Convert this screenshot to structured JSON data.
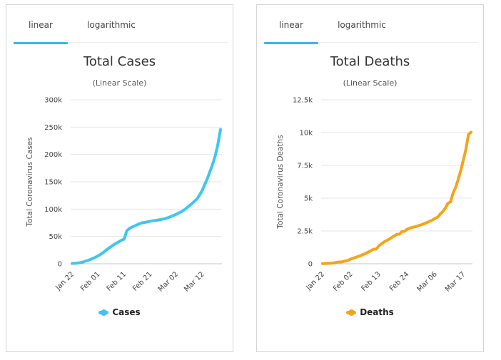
{
  "chart_data": [
    {
      "type": "line",
      "title": "Total Cases",
      "subtitle": "(Linear Scale)",
      "ylabel": "Total Coronavirus Cases",
      "tabs": [
        "linear",
        "logarithmic"
      ],
      "active_tab": 0,
      "ylim": [
        0,
        300000
      ],
      "yticks": [
        0,
        50000,
        100000,
        150000,
        200000,
        250000,
        300000
      ],
      "ytick_labels": [
        "0",
        "50k",
        "100k",
        "150k",
        "200k",
        "250k",
        "300k"
      ],
      "xtick_labels": [
        "Jan 22",
        "Feb 01",
        "Feb 11",
        "Feb 21",
        "Mar 02",
        "Mar 12"
      ],
      "xtick_index": [
        0,
        10,
        20,
        30,
        40,
        50
      ],
      "color": "#3ec6f0",
      "series": [
        {
          "name": "Cases",
          "values": [
            580,
            845,
            1317,
            2015,
            2800,
            4581,
            6058,
            7813,
            9823,
            11950,
            14553,
            17391,
            20630,
            24554,
            28276,
            31481,
            34886,
            37558,
            40554,
            43103,
            45171,
            60374,
            64617,
            67100,
            69264,
            71332,
            73327,
            75184,
            75700,
            76677,
            77673,
            78651,
            79205,
            80087,
            80828,
            81820,
            83112,
            84615,
            86604,
            88585,
            90443,
            93016,
            95314,
            98425,
            102050,
            106099,
            109991,
            114381,
            118948,
            126214,
            134576,
            145483,
            156653,
            169593,
            182490,
            198234,
            218815,
            245682
          ]
        }
      ]
    },
    {
      "type": "line",
      "title": "Total Deaths",
      "subtitle": "(Linear Scale)",
      "ylabel": "Total Coronavirus Deaths",
      "tabs": [
        "linear",
        "logarithmic"
      ],
      "active_tab": 0,
      "ylim": [
        0,
        12500
      ],
      "yticks": [
        0,
        2500,
        5000,
        7500,
        10000,
        12500
      ],
      "ytick_labels": [
        "0",
        "2.5k",
        "5k",
        "7.5k",
        "10k",
        "12.5k"
      ],
      "xtick_labels": [
        "Jan 22",
        "Feb 02",
        "Feb 13",
        "Feb 24",
        "Mar 06",
        "Mar 17"
      ],
      "xtick_index": [
        0,
        11,
        22,
        33,
        44,
        55
      ],
      "color": "#f5a31a",
      "series": [
        {
          "name": "Deaths",
          "values": [
            17,
            18,
            26,
            42,
            56,
            82,
            131,
            133,
            171,
            213,
            259,
            362,
            426,
            492,
            564,
            634,
            719,
            806,
            906,
            1013,
            1113,
            1118,
            1371,
            1523,
            1666,
            1770,
            1868,
            2007,
            2122,
            2247,
            2251,
            2458,
            2469,
            2629,
            2708,
            2770,
            2814,
            2872,
            2941,
            2996,
            3085,
            3160,
            3254,
            3348,
            3460,
            3558,
            3802,
            3988,
            4262,
            4615,
            4720,
            5404,
            5819,
            6440,
            7126,
            7905,
            8733,
            9867,
            10030
          ]
        }
      ]
    }
  ]
}
